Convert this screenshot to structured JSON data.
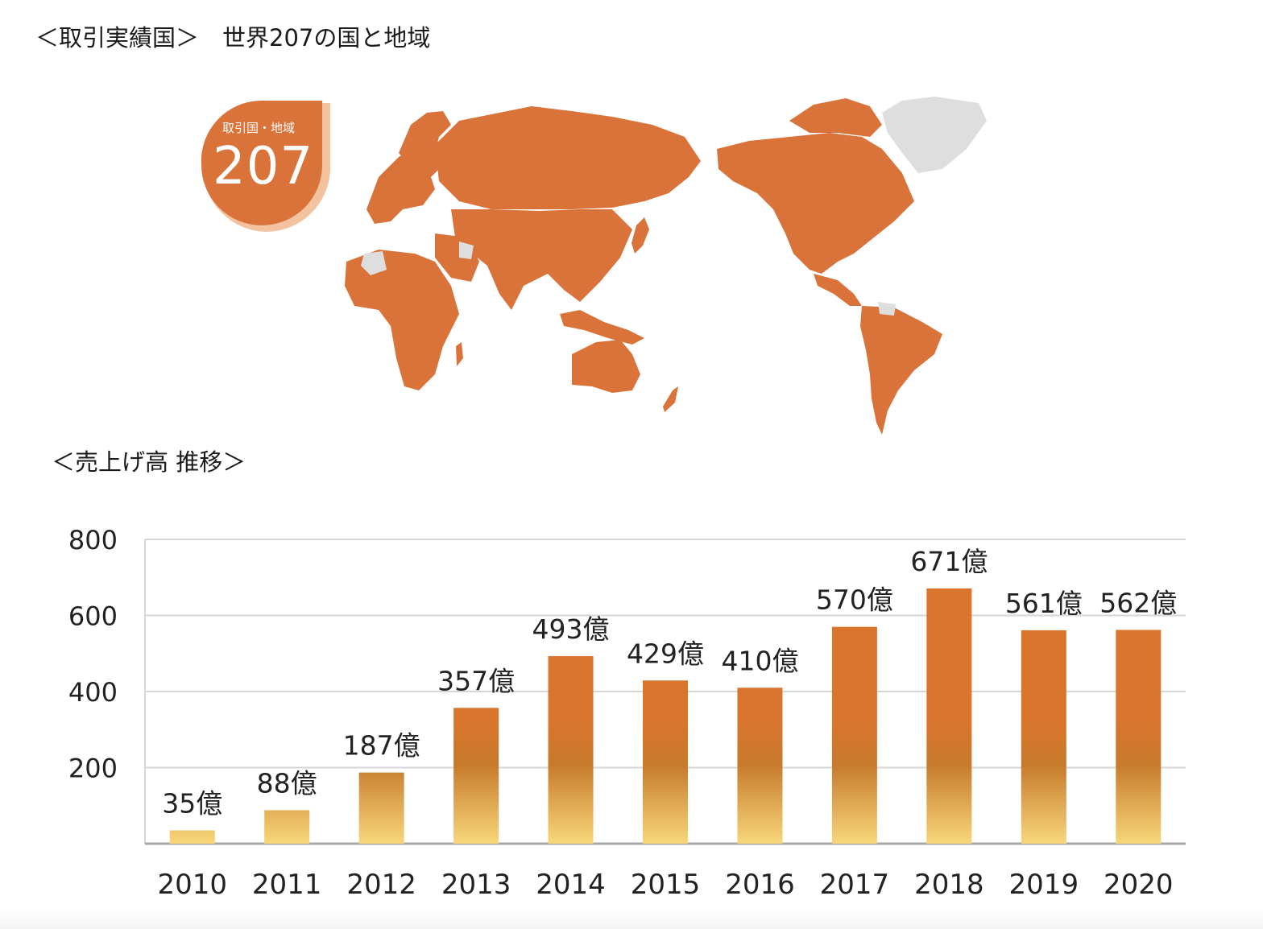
{
  "map_section": {
    "title": "＜取引実績国＞　世界207の国と地域",
    "badge_label": "取引国・地域",
    "badge_value": "207"
  },
  "sales_section": {
    "title": "＜売上げ高 推移＞"
  },
  "colors": {
    "bar_top": "#d9752d",
    "bar_mid": "#c77a2b",
    "bar_bottom": "#f7d77a",
    "map_land": "#d9733a",
    "map_other": "#dedede",
    "badge": "#d9733a",
    "badge_shadow": "#f3c3a0",
    "grid": "#d6d6d6"
  },
  "chart_data": {
    "type": "bar",
    "categories": [
      "2010",
      "2011",
      "2012",
      "2013",
      "2014",
      "2015",
      "2016",
      "2017",
      "2018",
      "2019",
      "2020"
    ],
    "values": [
      35,
      88,
      187,
      357,
      493,
      429,
      410,
      570,
      671,
      561,
      562
    ],
    "data_labels": [
      "35億",
      "88億",
      "187億",
      "357億",
      "493億",
      "429億",
      "410億",
      "570億",
      "671億",
      "561億",
      "562億"
    ],
    "yticks": [
      "200",
      "400",
      "600",
      "800"
    ],
    "ylim": [
      0,
      800
    ],
    "grid": true,
    "title": "",
    "xlabel": "",
    "ylabel": ""
  }
}
